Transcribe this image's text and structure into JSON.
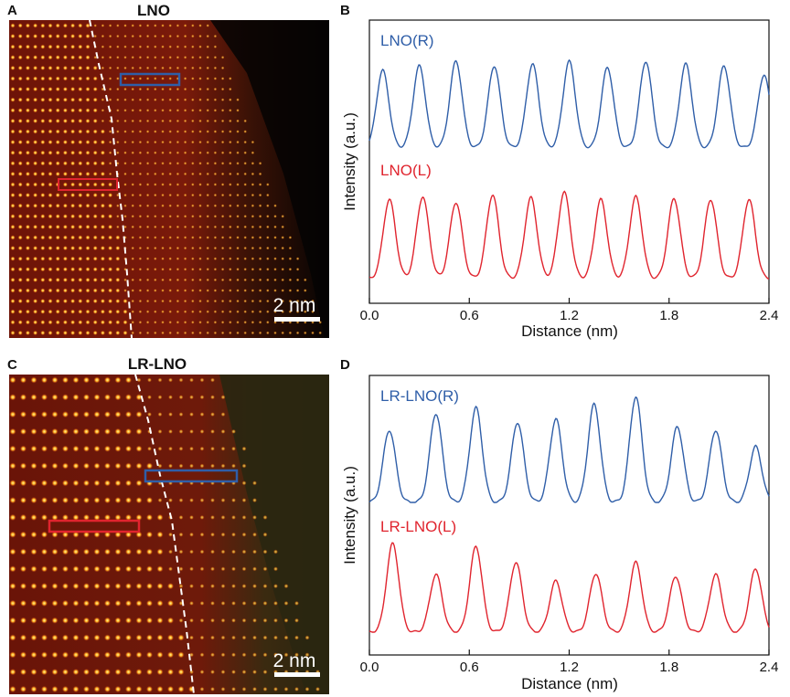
{
  "colors": {
    "blue": "#2f5ea8",
    "red": "#e0242e",
    "dash": "#ffffff",
    "frame": "#111111"
  },
  "images": [
    {
      "id": "A",
      "panel_letter": "A",
      "title": "LNO",
      "scale_bar_label": "2 nm"
    },
    {
      "id": "C",
      "panel_letter": "C",
      "title": "LR-LNO",
      "scale_bar_label": "2 nm"
    }
  ],
  "chart_data": [
    {
      "panel_letter": "B",
      "type": "line",
      "xlabel": "Distance (nm)",
      "ylabel": "Intensity (a.u.)",
      "xlim": [
        0.0,
        2.4
      ],
      "x_ticks": [
        "0.0",
        "0.6",
        "1.2",
        "1.8",
        "2.4"
      ],
      "series": [
        {
          "name": "LNO(R)",
          "color": "#2f5ea8",
          "peak_positions_nm": [
            0.08,
            0.3,
            0.52,
            0.75,
            0.98,
            1.2,
            1.43,
            1.66,
            1.9,
            2.13,
            2.37
          ],
          "peak_heights": [
            0.85,
            0.9,
            0.95,
            0.9,
            0.92,
            0.95,
            0.88,
            0.95,
            0.92,
            0.9,
            0.8
          ]
        },
        {
          "name": "LNO(L)",
          "color": "#e0242e",
          "peak_positions_nm": [
            0.12,
            0.32,
            0.52,
            0.74,
            0.97,
            1.17,
            1.39,
            1.6,
            1.83,
            2.05,
            2.28
          ],
          "peak_heights": [
            0.85,
            0.88,
            0.82,
            0.9,
            0.87,
            0.93,
            0.85,
            0.88,
            0.86,
            0.85,
            0.85
          ]
        }
      ]
    },
    {
      "panel_letter": "D",
      "type": "line",
      "xlabel": "Distance (nm)",
      "ylabel": "Intensity (a.u.)",
      "xlim": [
        0.0,
        2.4
      ],
      "x_ticks": [
        "0.0",
        "0.6",
        "1.2",
        "1.8",
        "2.4"
      ],
      "series": [
        {
          "name": "LR-LNO(R)",
          "color": "#2f5ea8",
          "peak_positions_nm": [
            0.12,
            0.4,
            0.64,
            0.89,
            1.12,
            1.35,
            1.6,
            1.85,
            2.08,
            2.32
          ],
          "peak_heights": [
            0.65,
            0.8,
            0.85,
            0.72,
            0.75,
            0.88,
            0.95,
            0.68,
            0.65,
            0.5
          ]
        },
        {
          "name": "LR-LNO(L)",
          "color": "#e0242e",
          "peak_positions_nm": [
            0.14,
            0.4,
            0.64,
            0.88,
            1.12,
            1.36,
            1.6,
            1.84,
            2.08,
            2.32
          ],
          "peak_heights": [
            0.95,
            0.62,
            0.92,
            0.75,
            0.55,
            0.63,
            0.75,
            0.6,
            0.62,
            0.68
          ]
        }
      ]
    }
  ]
}
